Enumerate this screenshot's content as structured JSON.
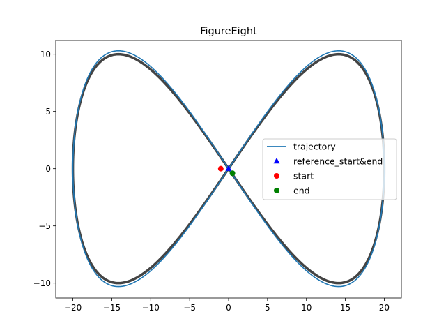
{
  "chart_data": {
    "type": "line",
    "title": "FigureEight",
    "xlabel": "",
    "ylabel": "",
    "xlim": [
      -22.2,
      22.2
    ],
    "ylim": [
      -11.3,
      11.2
    ],
    "x_ticks": [
      -20,
      -15,
      -10,
      -5,
      0,
      5,
      10,
      15,
      20
    ],
    "x_tick_labels": [
      "−20",
      "−15",
      "−10",
      "−5",
      "0",
      "5",
      "10",
      "15",
      "20"
    ],
    "y_ticks": [
      -10,
      -5,
      0,
      5,
      10
    ],
    "y_tick_labels": [
      "−10",
      "−5",
      "0",
      "5",
      "10"
    ],
    "grid": false,
    "legend_position": "center-right",
    "series": [
      {
        "name": "",
        "kind": "reference_path",
        "description_formula": "x = 20*sin(t), y = 20*sin(t)*cos(t), t in [0, 2π]",
        "amplitude_x": 20,
        "amplitude_y": 10,
        "color": "#444444"
      },
      {
        "name": "trajectory",
        "kind": "line",
        "amplitude_x": 20.0,
        "amplitude_y": 10.3,
        "color": "#1f77b4"
      },
      {
        "name": "reference_start&end",
        "kind": "marker",
        "marker": "triangle",
        "points": [
          [
            0,
            0
          ]
        ],
        "color": "#0000ff"
      },
      {
        "name": "start",
        "kind": "marker",
        "marker": "circle",
        "points": [
          [
            -1.0,
            0.0
          ]
        ],
        "color": "#ff0000"
      },
      {
        "name": "end",
        "kind": "marker",
        "marker": "circle",
        "points": [
          [
            0.5,
            -0.4
          ]
        ],
        "color": "#008000"
      }
    ]
  }
}
